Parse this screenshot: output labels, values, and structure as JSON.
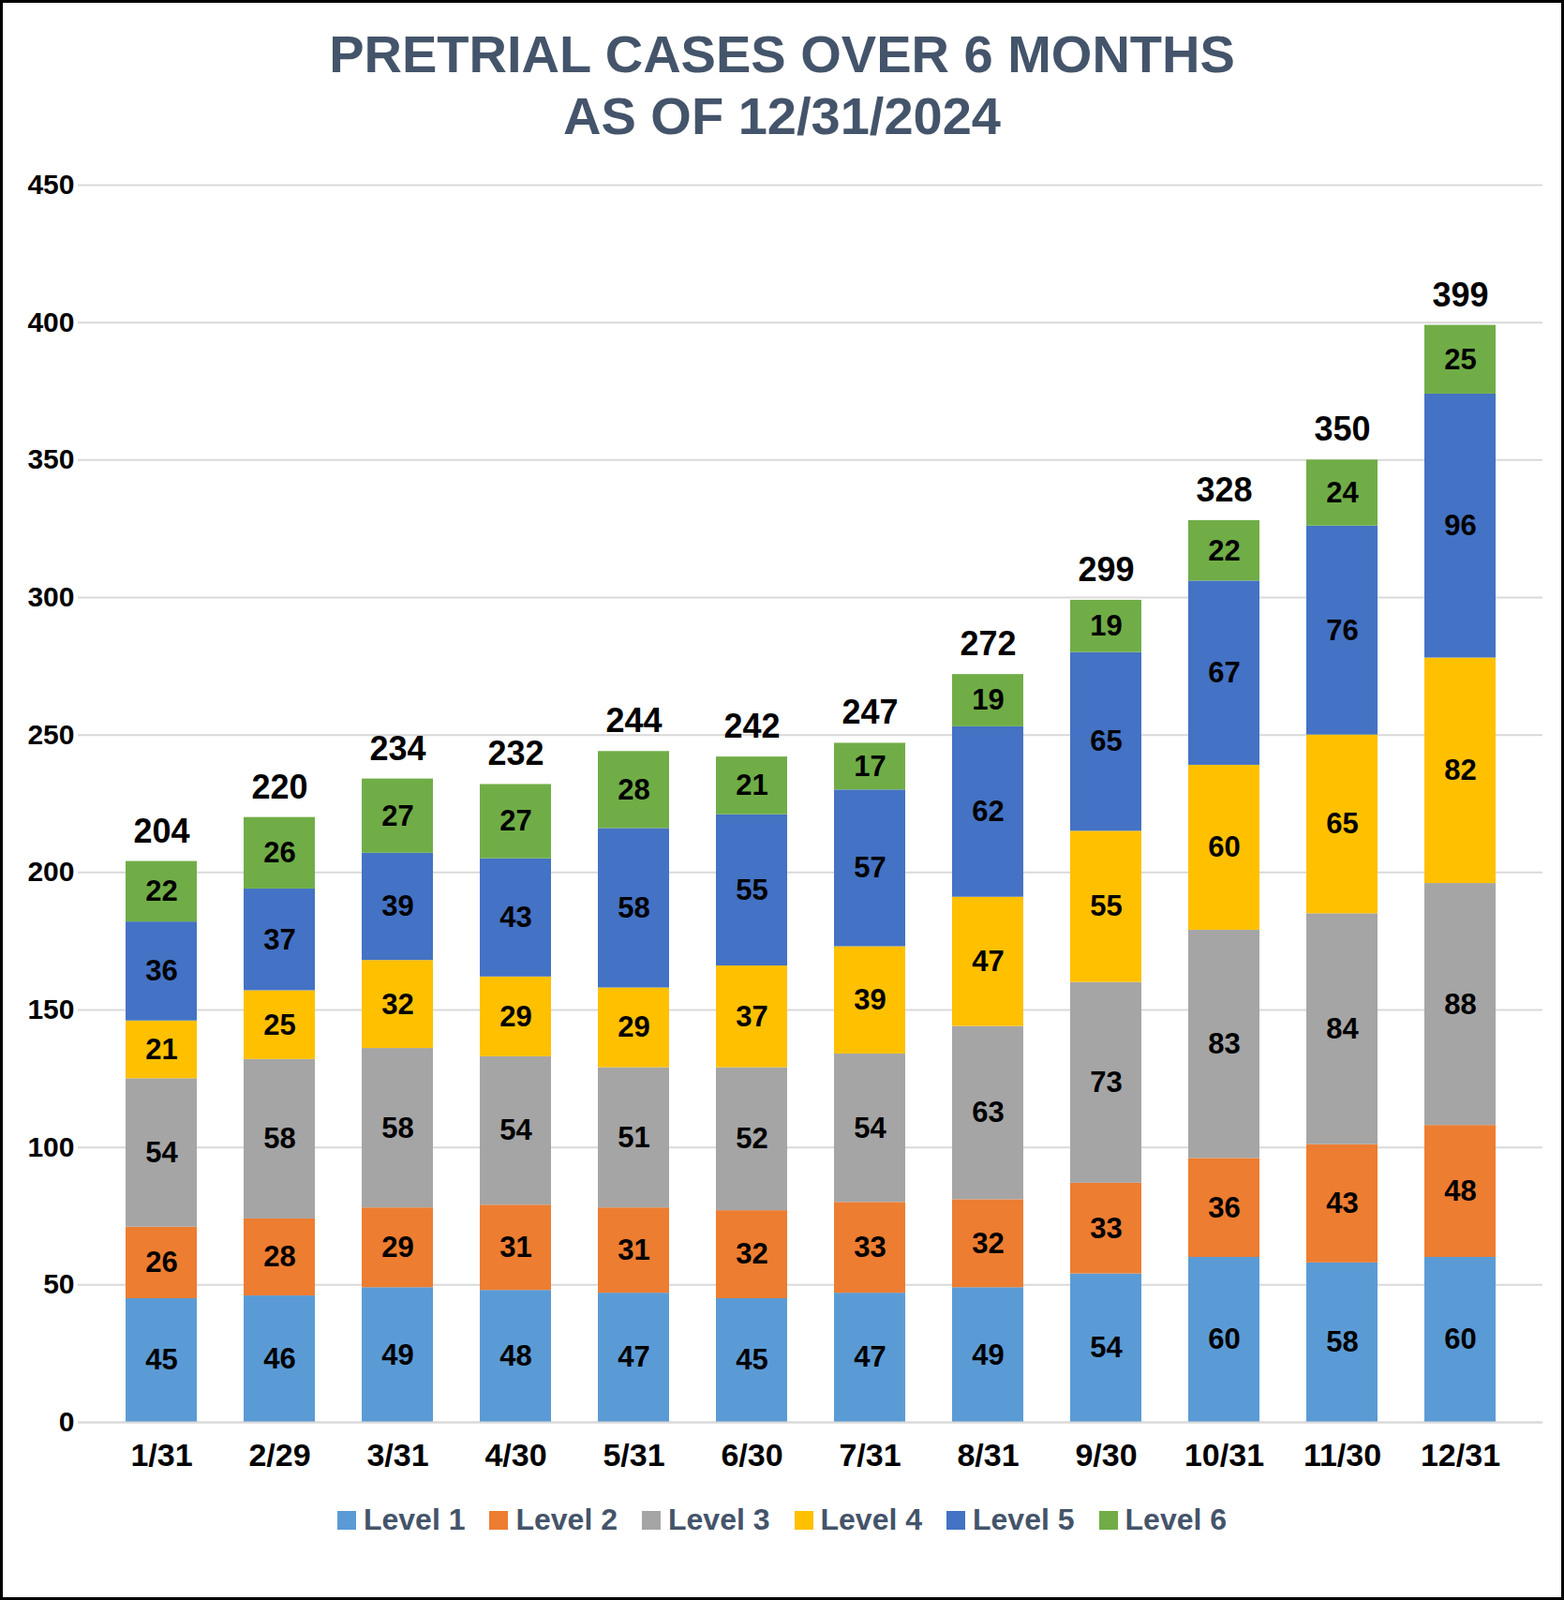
{
  "chart_data": {
    "type": "bar",
    "title": "PRETRIAL CASES OVER 6 MONTHS",
    "subtitle": "AS OF 12/31/2024",
    "stacked": true,
    "data_labels": true,
    "grid": true,
    "legend": "bottom",
    "categories": [
      "1/31",
      "2/29",
      "3/31",
      "4/30",
      "5/31",
      "6/30",
      "7/31",
      "8/31",
      "9/30",
      "10/31",
      "11/30",
      "12/31"
    ],
    "series": [
      {
        "name": "Level 1",
        "color": "#5b9bd5",
        "values": [
          45,
          46,
          49,
          48,
          47,
          45,
          47,
          49,
          54,
          60,
          58,
          60
        ]
      },
      {
        "name": "Level 2",
        "color": "#ed7d31",
        "values": [
          26,
          28,
          29,
          31,
          31,
          32,
          33,
          32,
          33,
          36,
          43,
          48
        ]
      },
      {
        "name": "Level 3",
        "color": "#a5a5a5",
        "values": [
          54,
          58,
          58,
          54,
          51,
          52,
          54,
          63,
          73,
          83,
          84,
          88
        ]
      },
      {
        "name": "Level 4",
        "color": "#ffc000",
        "values": [
          21,
          25,
          32,
          29,
          29,
          37,
          39,
          47,
          55,
          60,
          65,
          82
        ]
      },
      {
        "name": "Level 5",
        "color": "#4472c4",
        "values": [
          36,
          37,
          39,
          43,
          58,
          55,
          57,
          62,
          65,
          67,
          76,
          96
        ]
      },
      {
        "name": "Level 6",
        "color": "#70ad47",
        "values": [
          22,
          26,
          27,
          27,
          28,
          21,
          17,
          19,
          19,
          22,
          24,
          25
        ]
      }
    ],
    "totals": [
      204,
      220,
      234,
      232,
      244,
      242,
      247,
      272,
      299,
      328,
      350,
      399
    ],
    "ylim": [
      0,
      450
    ],
    "yticks": [
      0,
      50,
      100,
      150,
      200,
      250,
      300,
      350,
      400,
      450
    ]
  }
}
